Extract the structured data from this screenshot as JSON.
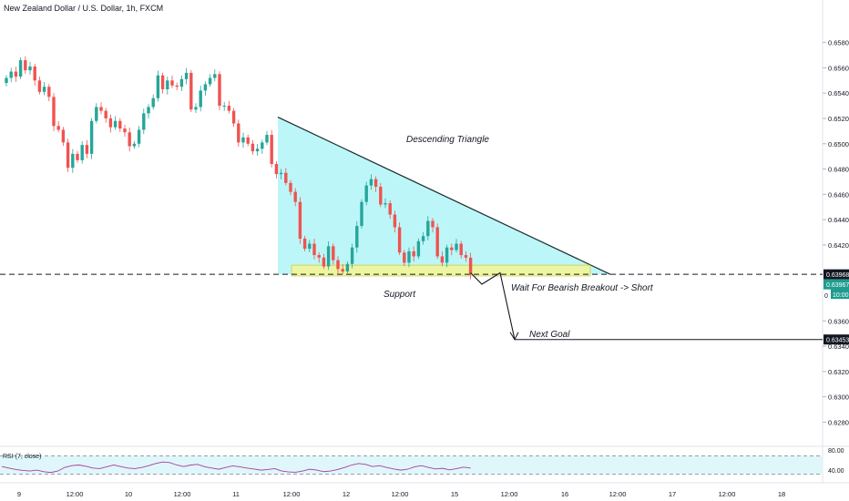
{
  "header": {
    "symbol_title": "New Zealand Dollar / U.S. Dollar, 1h, FXCM"
  },
  "colors": {
    "up": "#26a69a",
    "down": "#ef5350",
    "triangle_fill": "#b2f5f7",
    "support_fill": "#f3f59a",
    "support_stroke": "#c8cc3a",
    "rsi_line": "#a83e9b",
    "rsi_band": "#dff7fa",
    "price_tag": "#1e9c8f",
    "label_tag": "#131722"
  },
  "annotations": {
    "triangle_label": "Descending Triangle",
    "support_label": "Support",
    "breakout_label": "Wait For Bearish Breakout -> Short",
    "goal_label": "Next Goal"
  },
  "price_tags": {
    "level": "0.63968",
    "last": "0.63967",
    "countdown": "10:00",
    "countdown_prefix": "0",
    "goal": "0.63453"
  },
  "rsi": {
    "label": "RSI (7, close)",
    "ticks": [
      "80.00",
      "40.00"
    ]
  },
  "chart_data": {
    "type": "candlestick",
    "title": "New Zealand Dollar / U.S. Dollar, 1h, FXCM",
    "y_ticks": [
      "0.65800",
      "0.65600",
      "0.65400",
      "0.65200",
      "0.65000",
      "0.64800",
      "0.64600",
      "0.64400",
      "0.64200",
      "0.63600",
      "0.63400",
      "0.63200",
      "0.63000",
      "0.62800"
    ],
    "ylim": [
      0.6276,
      0.6597
    ],
    "x_ticks": [
      "9",
      "12:00",
      "10",
      "12:00",
      "11",
      "12:00",
      "12",
      "12:00",
      "15",
      "12:00",
      "16",
      "12:00",
      "17",
      "12:00",
      "18"
    ],
    "closes": [
      0.6552,
      0.6557,
      0.6553,
      0.6566,
      0.6558,
      0.6561,
      0.655,
      0.6541,
      0.6545,
      0.6537,
      0.6514,
      0.6511,
      0.6501,
      0.6481,
      0.6492,
      0.6487,
      0.6499,
      0.6492,
      0.6518,
      0.6529,
      0.6526,
      0.652,
      0.6513,
      0.6518,
      0.6512,
      0.6509,
      0.6498,
      0.65,
      0.6511,
      0.6524,
      0.6529,
      0.6536,
      0.6554,
      0.6543,
      0.655,
      0.6546,
      0.6545,
      0.6551,
      0.6556,
      0.6527,
      0.6529,
      0.6542,
      0.6547,
      0.6552,
      0.6555,
      0.653,
      0.653,
      0.6526,
      0.6516,
      0.6501,
      0.6505,
      0.65,
      0.6494,
      0.6496,
      0.6501,
      0.6507,
      0.6484,
      0.6476,
      0.6477,
      0.6469,
      0.6462,
      0.6454,
      0.6425,
      0.6417,
      0.6421,
      0.6412,
      0.641,
      0.6403,
      0.6419,
      0.6408,
      0.6401,
      0.6399,
      0.6405,
      0.6418,
      0.6435,
      0.6454,
      0.6467,
      0.6472,
      0.6466,
      0.6452,
      0.6453,
      0.6444,
      0.6434,
      0.6414,
      0.6406,
      0.6415,
      0.6411,
      0.6423,
      0.6427,
      0.6439,
      0.6434,
      0.6411,
      0.6406,
      0.6418,
      0.6416,
      0.6421,
      0.6412,
      0.641,
      0.6397
    ],
    "level_support": 0.63968,
    "next_goal": 0.63453,
    "rsi_values": [
      45,
      40,
      35,
      32,
      30,
      33,
      28,
      25,
      30,
      42,
      48,
      50,
      46,
      40,
      38,
      44,
      50,
      45,
      40,
      38,
      42,
      48,
      55,
      60,
      58,
      50,
      45,
      50,
      52,
      44,
      40,
      36,
      42,
      47,
      44,
      40,
      37,
      33,
      35,
      38,
      30,
      27,
      26,
      30,
      36,
      33,
      28,
      30,
      35,
      42,
      50,
      55,
      52,
      45,
      48,
      42,
      37,
      33,
      36,
      44,
      48,
      42,
      37,
      39,
      34,
      38,
      43,
      40
    ],
    "rsi_ylim": [
      0,
      100
    ],
    "rsi_levels": [
      80,
      20
    ]
  }
}
